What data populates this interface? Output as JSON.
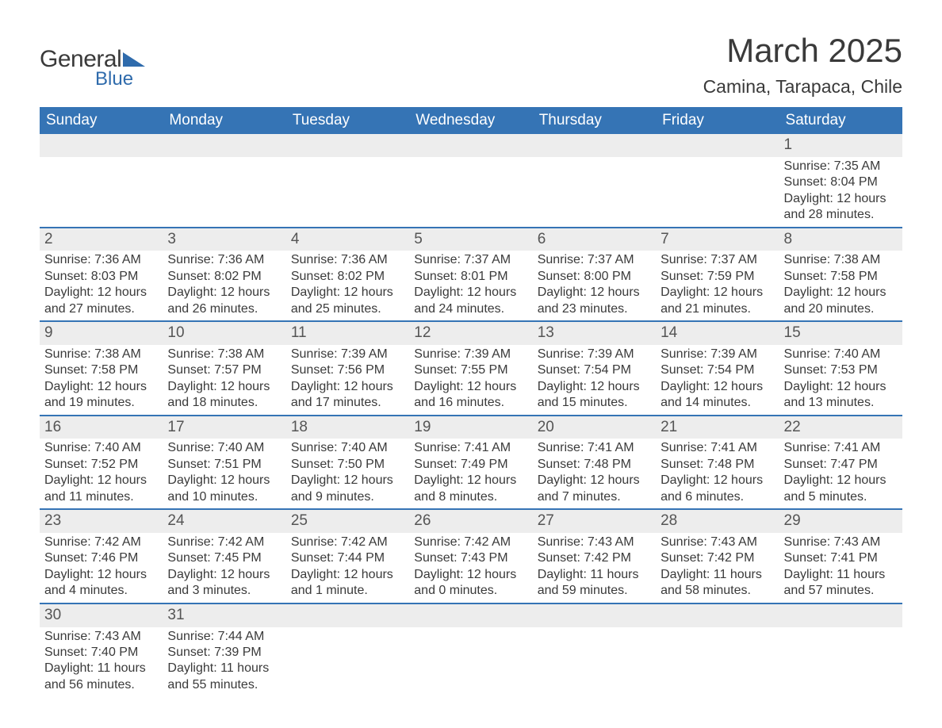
{
  "logo": {
    "part1": "General",
    "part2": "Blue"
  },
  "title": "March 2025",
  "location": "Camina, Tarapaca, Chile",
  "colors": {
    "header_bg": "#3574b5",
    "header_text": "#ffffff",
    "daynum_bg": "#ededed",
    "row_sep": "#3574b5",
    "body_text": "#3a3a3a",
    "logo_blue": "#2f6bac"
  },
  "layout": {
    "columns": 7,
    "rows": 6,
    "cell_font_size_pt": 12,
    "header_font_size_pt": 14,
    "title_font_size_pt": 32,
    "location_font_size_pt": 17
  },
  "weekday_labels": [
    "Sunday",
    "Monday",
    "Tuesday",
    "Wednesday",
    "Thursday",
    "Friday",
    "Saturday"
  ],
  "field_labels": {
    "sunrise": "Sunrise:",
    "sunset": "Sunset:",
    "daylight": "Daylight:"
  },
  "weeks": [
    [
      null,
      null,
      null,
      null,
      null,
      null,
      {
        "n": "1",
        "sunrise": "7:35 AM",
        "sunset": "8:04 PM",
        "dl1": "12 hours",
        "dl2": "and 28 minutes."
      }
    ],
    [
      {
        "n": "2",
        "sunrise": "7:36 AM",
        "sunset": "8:03 PM",
        "dl1": "12 hours",
        "dl2": "and 27 minutes."
      },
      {
        "n": "3",
        "sunrise": "7:36 AM",
        "sunset": "8:02 PM",
        "dl1": "12 hours",
        "dl2": "and 26 minutes."
      },
      {
        "n": "4",
        "sunrise": "7:36 AM",
        "sunset": "8:02 PM",
        "dl1": "12 hours",
        "dl2": "and 25 minutes."
      },
      {
        "n": "5",
        "sunrise": "7:37 AM",
        "sunset": "8:01 PM",
        "dl1": "12 hours",
        "dl2": "and 24 minutes."
      },
      {
        "n": "6",
        "sunrise": "7:37 AM",
        "sunset": "8:00 PM",
        "dl1": "12 hours",
        "dl2": "and 23 minutes."
      },
      {
        "n": "7",
        "sunrise": "7:37 AM",
        "sunset": "7:59 PM",
        "dl1": "12 hours",
        "dl2": "and 21 minutes."
      },
      {
        "n": "8",
        "sunrise": "7:38 AM",
        "sunset": "7:58 PM",
        "dl1": "12 hours",
        "dl2": "and 20 minutes."
      }
    ],
    [
      {
        "n": "9",
        "sunrise": "7:38 AM",
        "sunset": "7:58 PM",
        "dl1": "12 hours",
        "dl2": "and 19 minutes."
      },
      {
        "n": "10",
        "sunrise": "7:38 AM",
        "sunset": "7:57 PM",
        "dl1": "12 hours",
        "dl2": "and 18 minutes."
      },
      {
        "n": "11",
        "sunrise": "7:39 AM",
        "sunset": "7:56 PM",
        "dl1": "12 hours",
        "dl2": "and 17 minutes."
      },
      {
        "n": "12",
        "sunrise": "7:39 AM",
        "sunset": "7:55 PM",
        "dl1": "12 hours",
        "dl2": "and 16 minutes."
      },
      {
        "n": "13",
        "sunrise": "7:39 AM",
        "sunset": "7:54 PM",
        "dl1": "12 hours",
        "dl2": "and 15 minutes."
      },
      {
        "n": "14",
        "sunrise": "7:39 AM",
        "sunset": "7:54 PM",
        "dl1": "12 hours",
        "dl2": "and 14 minutes."
      },
      {
        "n": "15",
        "sunrise": "7:40 AM",
        "sunset": "7:53 PM",
        "dl1": "12 hours",
        "dl2": "and 13 minutes."
      }
    ],
    [
      {
        "n": "16",
        "sunrise": "7:40 AM",
        "sunset": "7:52 PM",
        "dl1": "12 hours",
        "dl2": "and 11 minutes."
      },
      {
        "n": "17",
        "sunrise": "7:40 AM",
        "sunset": "7:51 PM",
        "dl1": "12 hours",
        "dl2": "and 10 minutes."
      },
      {
        "n": "18",
        "sunrise": "7:40 AM",
        "sunset": "7:50 PM",
        "dl1": "12 hours",
        "dl2": "and 9 minutes."
      },
      {
        "n": "19",
        "sunrise": "7:41 AM",
        "sunset": "7:49 PM",
        "dl1": "12 hours",
        "dl2": "and 8 minutes."
      },
      {
        "n": "20",
        "sunrise": "7:41 AM",
        "sunset": "7:48 PM",
        "dl1": "12 hours",
        "dl2": "and 7 minutes."
      },
      {
        "n": "21",
        "sunrise": "7:41 AM",
        "sunset": "7:48 PM",
        "dl1": "12 hours",
        "dl2": "and 6 minutes."
      },
      {
        "n": "22",
        "sunrise": "7:41 AM",
        "sunset": "7:47 PM",
        "dl1": "12 hours",
        "dl2": "and 5 minutes."
      }
    ],
    [
      {
        "n": "23",
        "sunrise": "7:42 AM",
        "sunset": "7:46 PM",
        "dl1": "12 hours",
        "dl2": "and 4 minutes."
      },
      {
        "n": "24",
        "sunrise": "7:42 AM",
        "sunset": "7:45 PM",
        "dl1": "12 hours",
        "dl2": "and 3 minutes."
      },
      {
        "n": "25",
        "sunrise": "7:42 AM",
        "sunset": "7:44 PM",
        "dl1": "12 hours",
        "dl2": "and 1 minute."
      },
      {
        "n": "26",
        "sunrise": "7:42 AM",
        "sunset": "7:43 PM",
        "dl1": "12 hours",
        "dl2": "and 0 minutes."
      },
      {
        "n": "27",
        "sunrise": "7:43 AM",
        "sunset": "7:42 PM",
        "dl1": "11 hours",
        "dl2": "and 59 minutes."
      },
      {
        "n": "28",
        "sunrise": "7:43 AM",
        "sunset": "7:42 PM",
        "dl1": "11 hours",
        "dl2": "and 58 minutes."
      },
      {
        "n": "29",
        "sunrise": "7:43 AM",
        "sunset": "7:41 PM",
        "dl1": "11 hours",
        "dl2": "and 57 minutes."
      }
    ],
    [
      {
        "n": "30",
        "sunrise": "7:43 AM",
        "sunset": "7:40 PM",
        "dl1": "11 hours",
        "dl2": "and 56 minutes."
      },
      {
        "n": "31",
        "sunrise": "7:44 AM",
        "sunset": "7:39 PM",
        "dl1": "11 hours",
        "dl2": "and 55 minutes."
      },
      null,
      null,
      null,
      null,
      null
    ]
  ]
}
